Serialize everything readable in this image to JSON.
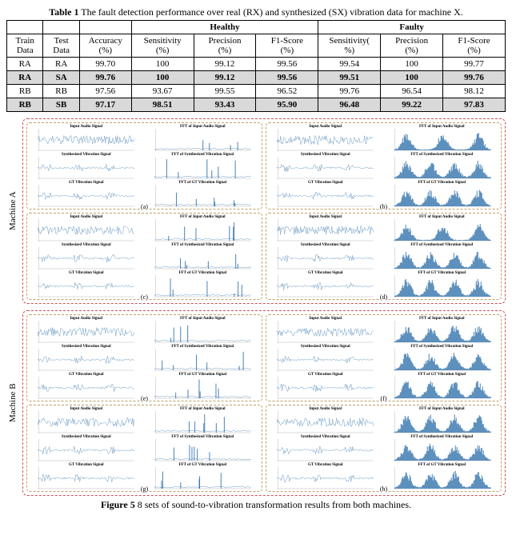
{
  "table": {
    "caption_bold": "Table 1",
    "caption_rest": " The fault detection performance over real (RX) and synthesized (SX) vibration data for machine X.",
    "header_groups": [
      "",
      "",
      "",
      "Healthy",
      "Faulty"
    ],
    "columns": [
      "Train Data",
      "Test Data",
      "Accuracy (%)",
      "Sensitivity (%)",
      "Precision (%)",
      "F1-Score (%)",
      "Sensitivity( %)",
      "Precision (%)",
      "F1-Score (%)"
    ],
    "rows": [
      {
        "cells": [
          "RA",
          "RA",
          "99.70",
          "100",
          "99.12",
          "99.56",
          "99.54",
          "100",
          "99.77"
        ],
        "shaded": false,
        "bold": false
      },
      {
        "cells": [
          "RA",
          "SA",
          "99.76",
          "100",
          "99.12",
          "99.56",
          "99.51",
          "100",
          "99.76"
        ],
        "shaded": true,
        "bold": true
      },
      {
        "cells": [
          "RB",
          "RB",
          "97.56",
          "93.67",
          "99.55",
          "96.52",
          "99.76",
          "96.54",
          "98.12"
        ],
        "shaded": false,
        "bold": false
      },
      {
        "cells": [
          "RB",
          "SB",
          "97.17",
          "98.51",
          "93.43",
          "95.90",
          "96.48",
          "99.22",
          "97.83"
        ],
        "shaded": true,
        "bold": true
      }
    ],
    "col_widths_pct": [
      7,
      7,
      10,
      12,
      12,
      12,
      12,
      12,
      12
    ],
    "border_color": "#000000",
    "shade_color": "#d9d9d9"
  },
  "figure": {
    "caption_bold": "Figure 5",
    "caption_rest": " 8 sets of sound-to-vibration transformation results from both machines.",
    "machines": [
      {
        "label": "Machine A",
        "tag": "A"
      },
      {
        "label": "Machine B",
        "tag": "B"
      }
    ],
    "group_labels": [
      "(a)",
      "(b)",
      "(c)",
      "(d)",
      "(e)",
      "(f)",
      "(g)",
      "(h)"
    ],
    "panel_titles": {
      "audio": "Input Audio Signal",
      "audio_fft": "FFT of Input Audio Signal",
      "synth": "Synthesized Vibration Signal",
      "synth_fft": "FFT of Synthesized Vibration Signal",
      "gt": "GT Vibration Signal",
      "gt_fft": "FFT of GT Vibration Signal"
    },
    "time_xlim": [
      0,
      4000
    ],
    "fft_xlim": [
      -2000,
      2000
    ],
    "line_color": "#2a6da8",
    "outer_dash_color": "#c94f5a",
    "inner_dash_color": "#c0a060",
    "panel_bg": "#ffffff",
    "panel_title_fontsize": 5
  }
}
